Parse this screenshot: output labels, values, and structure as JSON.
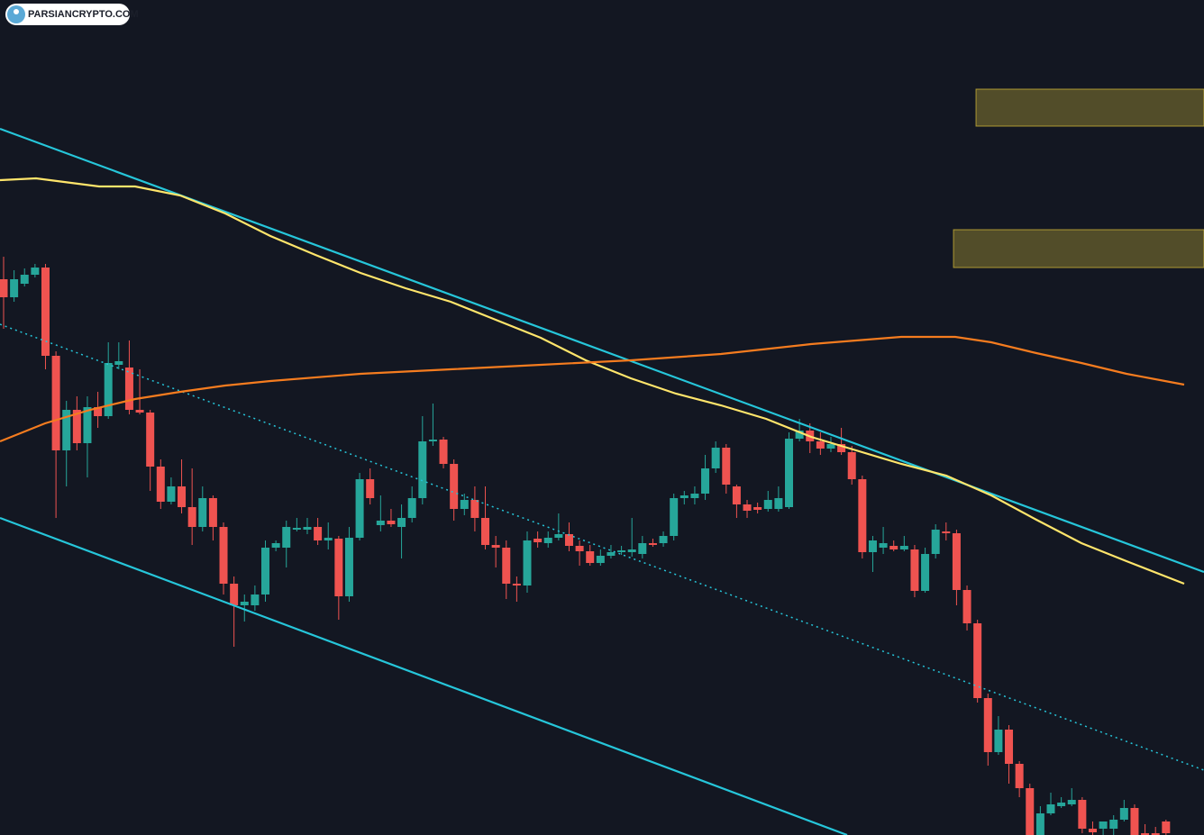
{
  "chart_data": {
    "type": "candlestick",
    "watermark": "PARSIANCRYPTO.COM",
    "ylim": [
      73,
      1000
    ],
    "up_color": "#26a69a",
    "down_color": "#ef5350",
    "open": [
      690,
      670,
      685,
      695,
      703,
      605,
      500,
      545,
      508,
      548,
      538,
      595,
      592,
      545,
      542,
      482,
      443,
      460,
      437,
      415,
      447,
      415,
      352,
      328,
      328,
      340,
      392,
      392,
      412,
      412,
      415,
      400,
      402,
      338,
      403,
      468,
      417,
      422,
      415,
      425,
      447,
      510,
      512,
      485,
      435,
      445,
      425,
      395,
      392,
      352,
      350,
      402,
      397,
      403,
      407,
      394,
      388,
      375,
      383,
      387,
      387,
      385,
      397,
      397,
      405,
      447,
      447,
      452,
      480,
      503,
      460,
      440,
      437,
      435,
      435,
      437,
      513,
      522,
      510,
      502,
      507,
      498,
      468,
      387,
      392,
      394,
      390,
      390,
      344,
      385,
      410,
      408,
      345,
      308,
      225,
      165,
      190,
      152,
      125,
      73,
      97,
      105,
      107,
      112,
      80,
      80,
      80,
      90,
      103,
      75,
      75,
      88
    ],
    "high": [
      715,
      700,
      702,
      707,
      707,
      610,
      555,
      560,
      560,
      565,
      620,
      620,
      622,
      590,
      545,
      490,
      470,
      490,
      480,
      460,
      450,
      420,
      360,
      340,
      350,
      400,
      400,
      422,
      425,
      425,
      425,
      420,
      405,
      415,
      475,
      480,
      450,
      435,
      440,
      460,
      538,
      552,
      515,
      490,
      452,
      460,
      460,
      405,
      400,
      360,
      410,
      410,
      410,
      430,
      420,
      400,
      395,
      390,
      395,
      394,
      425,
      405,
      402,
      410,
      452,
      455,
      460,
      495,
      510,
      507,
      462,
      445,
      442,
      455,
      460,
      520,
      535,
      530,
      520,
      515,
      525,
      505,
      472,
      405,
      415,
      400,
      405,
      395,
      392,
      418,
      420,
      412,
      350,
      312,
      230,
      205,
      195,
      155,
      130,
      105,
      120,
      115,
      125,
      115,
      88,
      85,
      95,
      112,
      107,
      85,
      82,
      90
    ],
    "low": [
      635,
      665,
      682,
      692,
      590,
      425,
      460,
      500,
      470,
      525,
      535,
      590,
      540,
      540,
      455,
      435,
      440,
      430,
      395,
      410,
      400,
      340,
      282,
      310,
      322,
      332,
      388,
      370,
      410,
      407,
      395,
      390,
      312,
      332,
      400,
      440,
      410,
      415,
      380,
      420,
      440,
      505,
      480,
      422,
      428,
      410,
      390,
      370,
      335,
      332,
      342,
      392,
      392,
      400,
      388,
      372,
      372,
      372,
      380,
      384,
      382,
      380,
      393,
      393,
      400,
      440,
      440,
      445,
      475,
      452,
      425,
      425,
      430,
      432,
      432,
      435,
      510,
      497,
      495,
      498,
      495,
      462,
      380,
      365,
      385,
      388,
      388,
      337,
      342,
      380,
      400,
      328,
      300,
      220,
      150,
      162,
      130,
      115,
      73,
      73,
      95,
      103,
      105,
      75,
      73,
      73,
      73,
      88,
      73,
      73,
      73,
      73
    ],
    "close": [
      670,
      690,
      695,
      703,
      605,
      500,
      545,
      508,
      548,
      538,
      597,
      599,
      545,
      542,
      482,
      443,
      460,
      437,
      415,
      447,
      415,
      352,
      328,
      332,
      340,
      392,
      397,
      415,
      414,
      415,
      400,
      403,
      338,
      403,
      468,
      447,
      422,
      418,
      425,
      447,
      510,
      512,
      485,
      435,
      445,
      425,
      395,
      392,
      352,
      350,
      400,
      398,
      403,
      407,
      394,
      388,
      375,
      383,
      387,
      389,
      390,
      397,
      395,
      405,
      447,
      450,
      452,
      480,
      503,
      462,
      440,
      433,
      434,
      445,
      447,
      513,
      522,
      510,
      502,
      507,
      498,
      468,
      387,
      400,
      397,
      390,
      394,
      344,
      385,
      412,
      408,
      345,
      308,
      225,
      165,
      190,
      152,
      125,
      73,
      97,
      107,
      109,
      112,
      80,
      76,
      88,
      90,
      103,
      73,
      73,
      73,
      75
    ],
    "lines": [
      {
        "color": "#26c6da",
        "style": "solid",
        "x": [
          -0.34,
          114.63
        ],
        "values": [
          857,
          365
        ]
      },
      {
        "color": "#26c6da",
        "style": "solid",
        "x": [
          -0.34,
          80.55
        ],
        "values": [
          425,
          73
        ]
      },
      {
        "color": "#26c6da",
        "style": "dotted",
        "x": [
          -0.34,
          114.63
        ],
        "values": [
          640,
          145
        ]
      },
      {
        "color": "#ffe56b",
        "style": "solid",
        "x": [
          -0.34,
          3.1,
          9.12,
          12.56,
          16.87,
          21.17,
          25.47,
          29.78,
          34.08,
          38.38,
          42.69,
          46.99,
          51.29,
          55.59,
          59.9,
          64.2,
          68.5,
          72.81,
          77.11,
          81.41,
          85.71,
          90.02,
          94.32,
          98.62,
          102.93,
          107.23,
          112.74
        ],
        "values": [
          800,
          802,
          793,
          793,
          783,
          763,
          738,
          717,
          697,
          680,
          665,
          645,
          625,
          600,
          580,
          563,
          550,
          535,
          515,
          500,
          485,
          472,
          450,
          423,
          397,
          377,
          352
        ]
      },
      {
        "color": "#f57c1f",
        "style": "solid",
        "x": [
          -0.34,
          3.96,
          8.26,
          12.56,
          16.87,
          21.17,
          25.47,
          34.08,
          42.69,
          51.29,
          59.9,
          68.5,
          77.11,
          85.71,
          90.88,
          94.32,
          98.62,
          102.93,
          107.23,
          112.74
        ],
        "values": [
          510,
          530,
          545,
          557,
          565,
          572,
          577,
          585,
          590,
          595,
          600,
          607,
          618,
          626,
          626,
          620,
          608,
          597,
          585,
          573
        ]
      }
    ],
    "zones": [
      {
        "color": "#c9b237",
        "x": [
          90.71,
          114.63
        ],
        "values": [
          703,
          745
        ]
      },
      {
        "color": "#c9b237",
        "x": [
          92.86,
          114.63
        ],
        "values": [
          860,
          901
        ]
      }
    ]
  }
}
